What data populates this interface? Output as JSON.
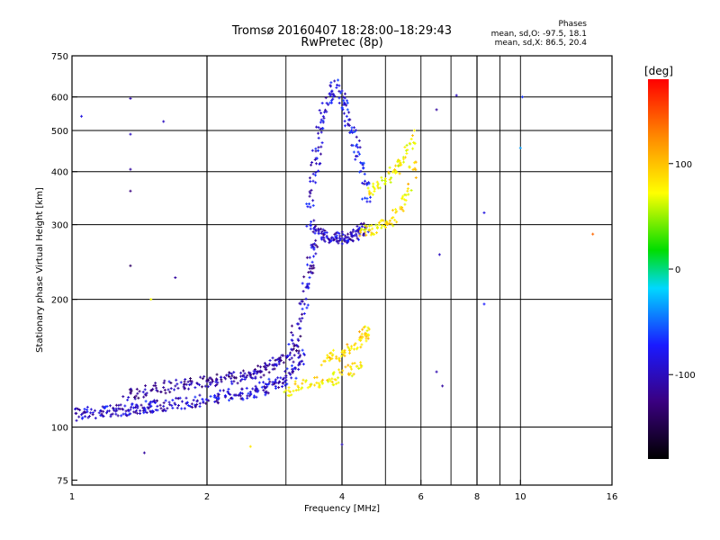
{
  "header": {
    "title": "Tromsø 20160407 18:28:00–18:29:43",
    "subtitle": "RwPretec (8p)"
  },
  "phase_stats": {
    "heading": "Phases",
    "line_o": "mean, sd,O: -97.5, 18.1",
    "line_x": "mean, sd,X:  86.5, 20.4"
  },
  "colorbar": {
    "title": "[deg]",
    "ticks": [
      {
        "value": 100,
        "label": "100"
      },
      {
        "value": 0,
        "label": "0"
      },
      {
        "value": -100,
        "label": "-100"
      }
    ]
  },
  "chart_data": {
    "type": "scatter",
    "xlabel": "Frequency [MHz]",
    "ylabel": "Stationary phase Virtual Height [km]",
    "x_scale": "log2",
    "y_scale": "log",
    "xlim": [
      1,
      16
    ],
    "ylim": [
      73,
      750
    ],
    "x_ticks": [
      {
        "value": 1,
        "label": "1"
      },
      {
        "value": 2,
        "label": "2"
      },
      {
        "value": 4,
        "label": "4"
      },
      {
        "value": 6,
        "label": "6"
      },
      {
        "value": 8,
        "label": "8"
      },
      {
        "value": 10,
        "label": "10"
      },
      {
        "value": 16,
        "label": "16"
      }
    ],
    "x_gridlines": [
      2,
      3,
      4,
      5,
      6,
      7,
      8,
      9,
      10
    ],
    "x_gridlines_bold": [
      2,
      4,
      8
    ],
    "y_ticks": [
      {
        "value": 75,
        "label": "75"
      },
      {
        "value": 100,
        "label": "100"
      },
      {
        "value": 200,
        "label": "200"
      },
      {
        "value": 300,
        "label": "300"
      },
      {
        "value": 400,
        "label": "400"
      },
      {
        "value": 500,
        "label": "500"
      },
      {
        "value": 600,
        "label": "600"
      },
      {
        "value": 750,
        "label": "750"
      }
    ],
    "y_gridlines": [
      100,
      200,
      300,
      400,
      500,
      600
    ],
    "grid": true,
    "colorscale": "rainbow: black → purple → blue → cyan → green → yellow → orange → red",
    "color_range_deg": [
      -180,
      180
    ],
    "series": [
      {
        "x": [
          1.0,
          1.05,
          1.1,
          1.15,
          1.2,
          1.25,
          1.3,
          1.35,
          1.4,
          1.45,
          1.5,
          1.55,
          1.6,
          1.7,
          1.8,
          1.9,
          2.0,
          2.1,
          2.2,
          2.3,
          2.4,
          2.5,
          2.6,
          2.7,
          2.8,
          2.9,
          3.0,
          3.1,
          3.2,
          3.3
        ],
        "y": [
          107,
          107,
          108,
          108,
          109,
          109,
          110,
          110,
          111,
          111,
          112,
          112,
          112,
          113,
          114,
          115,
          116,
          117,
          118,
          119,
          120,
          121,
          122,
          124,
          126,
          128,
          131,
          135,
          140,
          148
        ],
        "phase": -105
      },
      {
        "x": [
          1.3,
          1.4,
          1.5,
          1.6,
          1.7,
          1.8,
          1.9,
          2.0,
          2.1,
          2.2,
          2.3,
          2.4,
          2.5,
          2.6,
          2.7,
          2.8,
          2.9,
          3.0,
          3.1,
          3.2
        ],
        "y": [
          118,
          120,
          122,
          124,
          125,
          126,
          127,
          128,
          129,
          130,
          131,
          132,
          133,
          135,
          137,
          140,
          143,
          147,
          152,
          160
        ],
        "phase": -120
      },
      {
        "x": [
          3.1,
          3.2,
          3.3,
          3.35,
          3.4,
          3.45,
          3.5
        ],
        "y": [
          160,
          175,
          195,
          215,
          240,
          265,
          290
        ],
        "phase": -110
      },
      {
        "x": [
          3.4,
          3.5,
          3.6,
          3.7,
          3.8,
          3.9,
          4.0,
          4.1,
          4.2,
          4.3,
          4.4,
          4.5
        ],
        "y": [
          300,
          292,
          286,
          282,
          280,
          279,
          279,
          280,
          282,
          285,
          290,
          296
        ],
        "phase": -110
      },
      {
        "x": [
          3.4,
          3.45,
          3.5,
          3.55,
          3.6,
          3.7,
          3.8,
          3.9
        ],
        "y": [
          330,
          380,
          430,
          480,
          530,
          580,
          620,
          640
        ],
        "phase": -100
      },
      {
        "x": [
          4.0,
          4.05,
          4.1,
          4.2,
          4.3,
          4.4,
          4.5,
          4.55
        ],
        "y": [
          620,
          580,
          540,
          500,
          460,
          420,
          380,
          340
        ],
        "phase": -95
      },
      {
        "x": [
          3.0,
          3.2,
          3.4,
          3.6,
          3.8,
          4.0,
          4.2,
          4.4
        ],
        "y": [
          122,
          124,
          126,
          128,
          130,
          133,
          137,
          142
        ],
        "phase": 100
      },
      {
        "x": [
          3.6,
          3.8,
          4.0,
          4.2,
          4.4,
          4.5,
          4.6
        ],
        "y": [
          140,
          145,
          150,
          155,
          160,
          165,
          170
        ],
        "phase": 105
      },
      {
        "x": [
          4.4,
          4.6,
          4.8,
          5.0,
          5.2,
          5.4,
          5.6,
          5.8
        ],
        "y": [
          290,
          292,
          296,
          302,
          312,
          330,
          360,
          420
        ],
        "phase": 100
      },
      {
        "x": [
          4.6,
          4.8,
          5.0,
          5.2,
          5.4,
          5.6,
          5.8
        ],
        "y": [
          360,
          370,
          385,
          400,
          420,
          450,
          500
        ],
        "phase": 95
      }
    ],
    "scattered_points": [
      {
        "x": 1.35,
        "y": 595,
        "phase": -115
      },
      {
        "x": 1.35,
        "y": 490,
        "phase": -110
      },
      {
        "x": 1.35,
        "y": 405,
        "phase": -120
      },
      {
        "x": 1.35,
        "y": 360,
        "phase": -130
      },
      {
        "x": 1.35,
        "y": 240,
        "phase": -140
      },
      {
        "x": 1.05,
        "y": 540,
        "phase": -100
      },
      {
        "x": 1.6,
        "y": 525,
        "phase": -110
      },
      {
        "x": 1.7,
        "y": 225,
        "phase": -120
      },
      {
        "x": 1.5,
        "y": 200,
        "phase": 90
      },
      {
        "x": 1.45,
        "y": 87,
        "phase": -120
      },
      {
        "x": 2.5,
        "y": 90,
        "phase": 100
      },
      {
        "x": 4.0,
        "y": 91,
        "phase": -110
      },
      {
        "x": 6.5,
        "y": 560,
        "phase": -120
      },
      {
        "x": 7.2,
        "y": 605,
        "phase": -110
      },
      {
        "x": 8.3,
        "y": 320,
        "phase": -100
      },
      {
        "x": 8.3,
        "y": 195,
        "phase": -90
      },
      {
        "x": 10.0,
        "y": 455,
        "phase": -40
      },
      {
        "x": 10.1,
        "y": 600,
        "phase": -80
      },
      {
        "x": 14.5,
        "y": 285,
        "phase": 150
      },
      {
        "x": 6.5,
        "y": 135,
        "phase": -115
      },
      {
        "x": 6.7,
        "y": 125,
        "phase": -120
      },
      {
        "x": 6.6,
        "y": 255,
        "phase": -110
      }
    ]
  }
}
